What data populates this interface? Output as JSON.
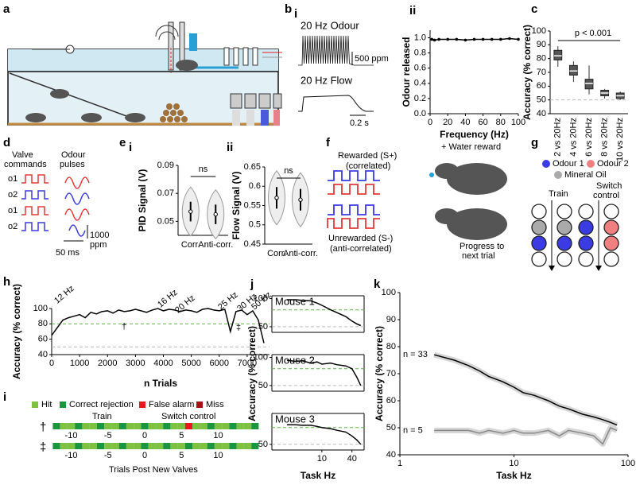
{
  "panel_labels": {
    "a": "a",
    "b": "b",
    "bi": "i",
    "bii": "ii",
    "c": "c",
    "d": "d",
    "e": "e",
    "ei": "i",
    "eii": "ii",
    "f": "f",
    "g": "g",
    "h": "h",
    "i": "i",
    "j": "j",
    "k": "k"
  },
  "panel_b": {
    "odour_label": "20 Hz Odour",
    "odour_scale": "500 ppm",
    "flow_label": "20 Hz Flow",
    "time_scale": "0.2 s"
  },
  "panel_d": {
    "valve_header": [
      "Valve",
      "commands"
    ],
    "odour_header": [
      "Odour",
      "pulses"
    ],
    "rows": [
      "o1",
      "o2",
      "o1",
      "o2"
    ],
    "ppm_scale": [
      "1000",
      "ppm"
    ],
    "time_scale": "50 ms"
  },
  "panel_f": {
    "rewarded": "Rewarded (S+)",
    "rewarded_note": "(correlated)",
    "unrewarded": "Unrewarded (S-)",
    "unrewarded_note": "(anti-correlated)",
    "reward": "+ Water reward",
    "progress": [
      "Progress to",
      "next trial"
    ]
  },
  "panel_g": {
    "legend": [
      "Odour 1",
      "Odour 2",
      "Mineral Oil"
    ],
    "train": "Train",
    "switch": [
      "Switch",
      "control"
    ]
  },
  "panel_i": {
    "legend": [
      "Hit",
      "Correct rejection",
      "False alarm",
      "Miss"
    ],
    "rows": [
      "†",
      "‡"
    ],
    "phases": [
      "Train",
      "Switch control"
    ],
    "ticks": [
      "-10",
      "-5",
      "0",
      "5",
      "10"
    ],
    "xlabel": "Trials Post New Valves"
  },
  "chart_data": [
    {
      "type": "line",
      "ylabel": "Odour released",
      "xlabel": "Frequency (Hz)",
      "markers": true,
      "x": [
        2,
        5,
        10,
        20,
        30,
        40,
        50,
        60,
        70,
        80,
        90,
        100
      ],
      "series": [
        {
          "color": "#000000",
          "values": [
            0.98,
            0.97,
            0.98,
            0.98,
            0.98,
            0.97,
            0.98,
            0.98,
            0.98,
            0.98,
            0.99,
            0.98
          ]
        }
      ],
      "xlim": [
        0,
        100
      ],
      "ylim": [
        0,
        1.1
      ],
      "xticks": [
        0,
        20,
        40,
        60,
        80,
        100
      ],
      "yticks": [
        {
          "value": 0,
          "label": "0.0"
        },
        0.2,
        0.4,
        0.6,
        0.8,
        {
          "value": 1,
          "label": "1.0"
        }
      ]
    },
    {
      "type": "box",
      "ylabel": "Accuracy (% correct)",
      "annotation": "p < 0.001",
      "categories": [
        "2 vs 20Hz",
        "4 vs 20Hz",
        "6 vs 20Hz",
        "8 vs 20Hz",
        "10 vs 20Hz"
      ],
      "boxes": [
        {
          "median": 82,
          "q1": 79,
          "q3": 86,
          "low": 74,
          "high": 89
        },
        {
          "median": 71,
          "q1": 68,
          "q3": 75,
          "low": 63,
          "high": 78
        },
        {
          "median": 62,
          "q1": 58,
          "q3": 65,
          "low": 54,
          "high": 75
        },
        {
          "median": 55,
          "q1": 53,
          "q3": 57,
          "low": 51,
          "high": 58
        },
        {
          "median": 53,
          "q1": 51,
          "q3": 55,
          "low": 50,
          "high": 56
        }
      ],
      "color": "#555555",
      "ylim": [
        40,
        100
      ],
      "yticks": [
        40,
        50,
        60,
        70,
        80,
        90,
        100
      ],
      "reference_lines": [
        {
          "value": 50,
          "color": "#bbbbbb"
        }
      ]
    },
    {
      "type": "violin",
      "ylabel": "PID Signal (V)",
      "annotation": "ns",
      "categories": [
        "Corr.",
        "Anti-corr."
      ],
      "medians": [
        0.057,
        0.055
      ],
      "ylim": [
        0.04,
        0.09
      ],
      "yticks": [
        0.05,
        0.07,
        0.09
      ]
    },
    {
      "type": "violin",
      "ylabel": "Flow Signal (V)",
      "annotation": "ns",
      "categories": [
        "Corr.",
        "Anti-corr."
      ],
      "medians": [
        0.57,
        0.565
      ],
      "ylim": [
        0.45,
        0.65
      ],
      "yticks": [
        0.45,
        0.5,
        0.55,
        0.6,
        0.65
      ]
    },
    {
      "type": "line",
      "ylabel": "Accuracy (% correct)",
      "xlabel": "n Trials",
      "annotations": [
        "12 Hz",
        "16 Hz",
        "20 Hz",
        "25 Hz",
        "30 Hz",
        "50 Hz",
        "†",
        "‡"
      ],
      "x": [
        0,
        200,
        400,
        600,
        800,
        1000,
        1200,
        1400,
        1600,
        1800,
        2000,
        2200,
        2400,
        2600,
        2800,
        3000,
        3200,
        3400,
        3600,
        3800,
        4000,
        4200,
        4400,
        4600,
        4800,
        5000,
        5200,
        5400,
        5600,
        5800,
        6000,
        6200,
        6400,
        6600,
        6800,
        7000,
        7200,
        7400,
        7600
      ],
      "series": [
        {
          "color": "#000000",
          "values": [
            65,
            75,
            85,
            88,
            90,
            92,
            88,
            95,
            93,
            96,
            97,
            94,
            98,
            96,
            97,
            99,
            97,
            95,
            98,
            100,
            97,
            99,
            98,
            96,
            98,
            97,
            95,
            99,
            100,
            98,
            97,
            99,
            70,
            96,
            98,
            92,
            97,
            85,
            55
          ]
        }
      ],
      "xlim": [
        0,
        7800
      ],
      "ylim": [
        40,
        100
      ],
      "xticks": [
        0,
        1000,
        2000,
        3000,
        4000,
        5000,
        6000,
        7000
      ],
      "yticks": [
        40,
        60,
        80,
        100
      ],
      "reference_lines": [
        {
          "value": 80,
          "color": "#5fb548"
        },
        {
          "value": 50,
          "color": "#bbbbbb"
        }
      ]
    },
    {
      "type": "line",
      "title": "Mouse 1",
      "ylabel": "Accuracy (% correct)",
      "xlog": true,
      "x": [
        2,
        3,
        4,
        6,
        8,
        10,
        15,
        20,
        30,
        40,
        50,
        60
      ],
      "series": [
        {
          "color": "#000000",
          "values": [
            98,
            98,
            97,
            96,
            92,
            88,
            80,
            75,
            68,
            60,
            55,
            52
          ]
        }
      ],
      "xlim": [
        1,
        70
      ],
      "ylim": [
        40,
        105
      ],
      "yticks": [
        50,
        100
      ],
      "reference_lines": [
        {
          "value": 80,
          "color": "#5fb548"
        },
        {
          "value": 50,
          "color": "#bbbbbb"
        }
      ]
    },
    {
      "type": "line",
      "title": "Mouse 2",
      "xlog": true,
      "x": [
        2,
        3,
        4,
        6,
        8,
        10,
        15,
        20,
        30,
        40,
        50,
        60
      ],
      "series": [
        {
          "color": "#000000",
          "values": [
            95,
            93,
            94,
            90,
            92,
            88,
            90,
            87,
            85,
            80,
            65,
            50
          ]
        }
      ],
      "xlim": [
        1,
        70
      ],
      "ylim": [
        40,
        105
      ],
      "yticks": [
        50,
        100
      ],
      "reference_lines": [
        {
          "value": 80,
          "color": "#5fb548"
        },
        {
          "value": 50,
          "color": "#bbbbbb"
        }
      ]
    },
    {
      "type": "line",
      "title": "Mouse 3",
      "xlabel": "Task Hz",
      "xlog": true,
      "x": [
        2,
        3,
        4,
        6,
        8,
        10,
        15,
        20,
        30,
        40,
        50,
        60
      ],
      "series": [
        {
          "color": "#000000",
          "values": [
            85,
            85,
            84,
            84,
            82,
            80,
            78,
            75,
            72,
            65,
            58,
            50
          ]
        }
      ],
      "xlim": [
        1,
        70
      ],
      "ylim": [
        40,
        105
      ],
      "xticks": [
        10,
        40
      ],
      "yticks": [
        50
      ],
      "reference_lines": [
        {
          "value": 80,
          "color": "#5fb548"
        },
        {
          "value": 50,
          "color": "#bbbbbb"
        }
      ]
    },
    {
      "type": "line",
      "ylabel": "Accuracy (% correct)",
      "xlabel": "Task Hz",
      "xlog": true,
      "series_labels": true,
      "x": [
        2,
        3,
        4,
        5,
        6,
        8,
        10,
        12,
        15,
        20,
        25,
        30,
        40,
        50,
        60,
        70,
        80
      ],
      "series": [
        {
          "name": "n = 33",
          "color": "#000000",
          "values": [
            77,
            75,
            73,
            71,
            69,
            67,
            65,
            63,
            62,
            60,
            58,
            57,
            55,
            54,
            53,
            52,
            51
          ]
        },
        {
          "name": "n = 5",
          "color": "#888888",
          "values": [
            49,
            49,
            49,
            48,
            49,
            48,
            49,
            48,
            48,
            49,
            47,
            49,
            48,
            47,
            44,
            50,
            49
          ]
        }
      ],
      "xlim": [
        1,
        100
      ],
      "ylim": [
        40,
        100
      ],
      "xticks": [
        1,
        10,
        100
      ],
      "yticks": [
        40,
        50,
        60,
        70,
        80,
        90,
        100
      ]
    }
  ]
}
